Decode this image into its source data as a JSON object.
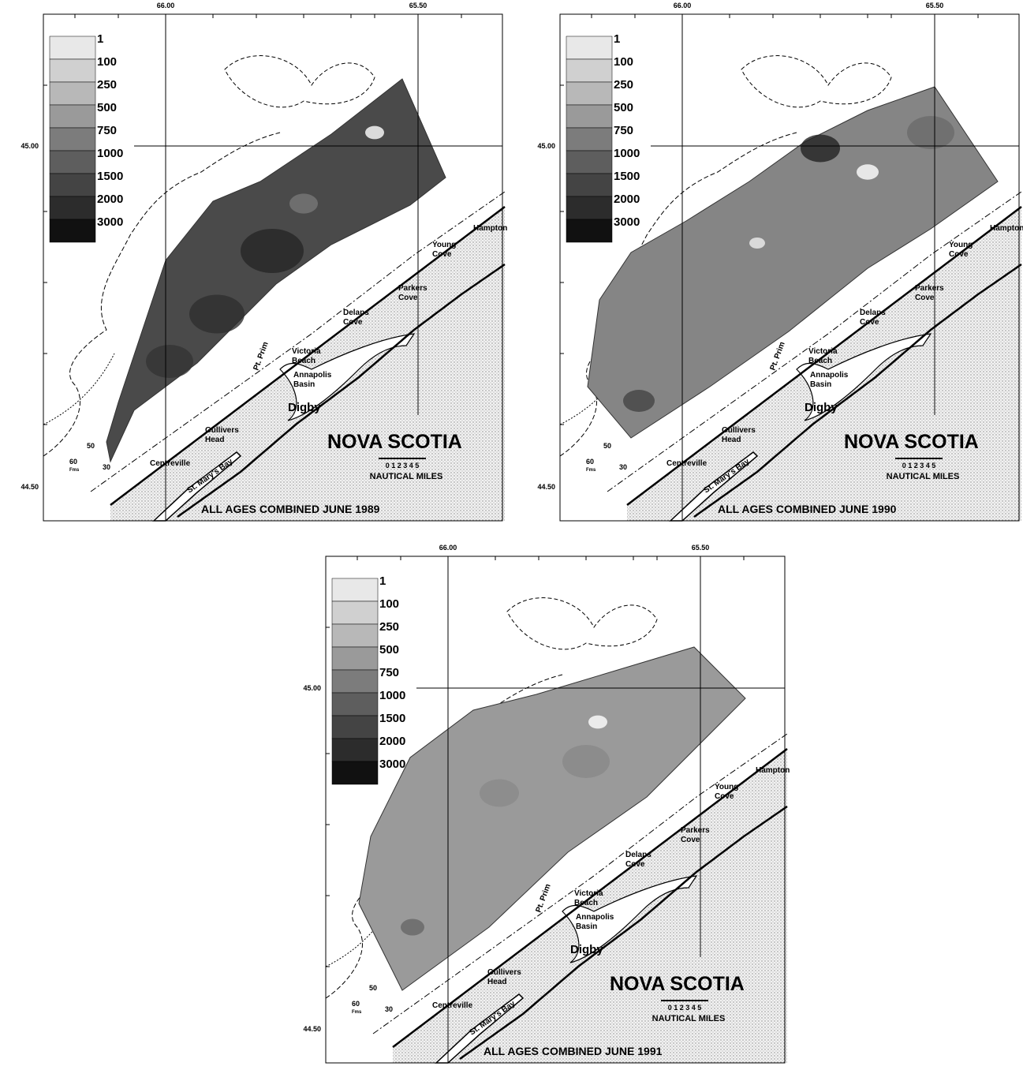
{
  "panels": [
    {
      "x_labels": [
        "66.00",
        "65.50"
      ],
      "y_labels": [
        "45.00",
        "44.50"
      ],
      "legend": [
        "1",
        "100",
        "250",
        "500",
        "750",
        "1000",
        "1500",
        "2000",
        "3000"
      ],
      "places": [
        {
          "lines": [
            "Hampton"
          ]
        },
        {
          "lines": [
            "Young",
            "Cove"
          ]
        },
        {
          "lines": [
            "Parkers",
            "Cove"
          ]
        },
        {
          "lines": [
            "Delaps",
            "Cove"
          ]
        },
        {
          "lines": [
            "Victoria",
            "Beach"
          ]
        },
        {
          "lines": [
            "Pt. Prim"
          ]
        },
        {
          "lines": [
            "Annapolis",
            "Basin"
          ]
        },
        {
          "lines": [
            "Digby"
          ]
        },
        {
          "lines": [
            "Gullivers",
            "Head"
          ]
        },
        {
          "lines": [
            "Centreville"
          ]
        },
        {
          "lines": [
            "St. Mary's Bay"
          ]
        }
      ],
      "region_label": "NOVA SCOTIA",
      "scale_numbers": "0 1 2 3 4 5",
      "scale_unit": "NAUTICAL MILES",
      "depth_labels": [
        "60",
        "Fms",
        "50",
        "30"
      ],
      "title": "ALL AGES COMBINED JUNE 1989"
    },
    {
      "x_labels": [
        "66.00",
        "65.50"
      ],
      "y_labels": [
        "45.00",
        "44.50"
      ],
      "legend": [
        "1",
        "100",
        "250",
        "500",
        "750",
        "1000",
        "1500",
        "2000",
        "3000"
      ],
      "places": [
        {
          "lines": [
            "Hampton"
          ]
        },
        {
          "lines": [
            "Young",
            "Cove"
          ]
        },
        {
          "lines": [
            "Parkers",
            "Cove"
          ]
        },
        {
          "lines": [
            "Delaps",
            "Cove"
          ]
        },
        {
          "lines": [
            "Victoria",
            "Beach"
          ]
        },
        {
          "lines": [
            "Pt. Prim"
          ]
        },
        {
          "lines": [
            "Annapolis",
            "Basin"
          ]
        },
        {
          "lines": [
            "Digby"
          ]
        },
        {
          "lines": [
            "Gullivers",
            "Head"
          ]
        },
        {
          "lines": [
            "Centreville"
          ]
        },
        {
          "lines": [
            "St. Mary's Bay"
          ]
        }
      ],
      "region_label": "NOVA SCOTIA",
      "scale_numbers": "0 1 2 3 4 5",
      "scale_unit": "NAUTICAL MILES",
      "depth_labels": [
        "60",
        "Fms",
        "50",
        "30"
      ],
      "title": "ALL AGES COMBINED JUNE 1990"
    },
    {
      "x_labels": [
        "66.00",
        "65.50"
      ],
      "y_labels": [
        "45.00",
        "44.50"
      ],
      "legend": [
        "1",
        "100",
        "250",
        "500",
        "750",
        "1000",
        "1500",
        "2000",
        "3000"
      ],
      "places": [
        {
          "lines": [
            "Hampton"
          ]
        },
        {
          "lines": [
            "Young",
            "Cove"
          ]
        },
        {
          "lines": [
            "Parkers",
            "Cove"
          ]
        },
        {
          "lines": [
            "Delaps",
            "Cove"
          ]
        },
        {
          "lines": [
            "Victoria",
            "Beach"
          ]
        },
        {
          "lines": [
            "Pt. Prim"
          ]
        },
        {
          "lines": [
            "Annapolis",
            "Basin"
          ]
        },
        {
          "lines": [
            "Digby"
          ]
        },
        {
          "lines": [
            "Gullivers",
            "Head"
          ]
        },
        {
          "lines": [
            "Centreville"
          ]
        },
        {
          "lines": [
            "St. Mary's Bay"
          ]
        }
      ],
      "region_label": "NOVA SCOTIA",
      "scale_numbers": "0 1 2 3 4 5",
      "scale_unit": "NAUTICAL MILES",
      "depth_labels": [
        "60",
        "Fms",
        "50",
        "30"
      ],
      "title": "ALL AGES COMBINED JUNE 1991"
    }
  ]
}
